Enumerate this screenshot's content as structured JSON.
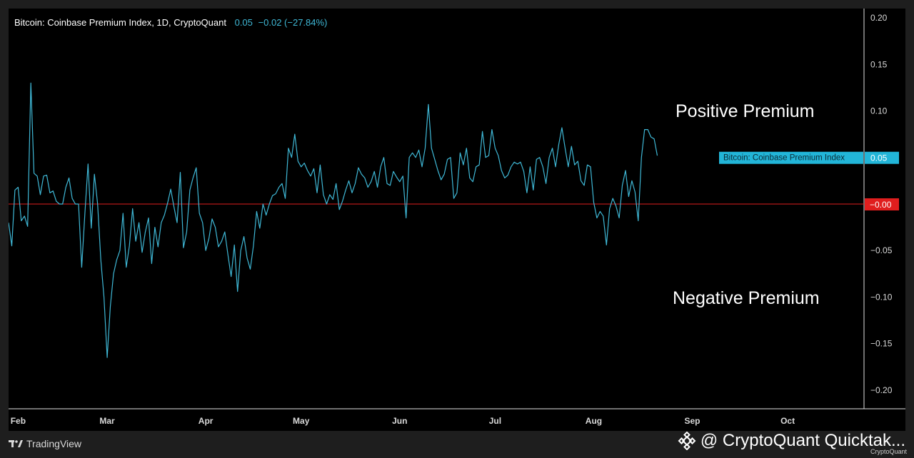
{
  "header": {
    "title": "Bitcoin: Coinbase Premium Index, 1D, CryptoQuant",
    "value": "0.05",
    "change": "−0.02 (−27.84%)"
  },
  "annotations": {
    "positive": "Positive Premium",
    "negative": "Negative Premium"
  },
  "footer": {
    "tradingview": "TradingView",
    "watermark": "@ CryptoQuant Quicktak...",
    "cq_small": "CryptoQuant"
  },
  "colors": {
    "series": "#3fb8d6",
    "zero_line": "#e01e1e",
    "zero_badge": "#e01e1e",
    "series_badge": "#22b5d8",
    "axis_text": "#d9d9d9",
    "background": "#000000"
  },
  "chart_data": {
    "type": "line",
    "title": "Bitcoin: Coinbase Premium Index, 1D, CryptoQuant",
    "xlabel": "",
    "ylabel": "",
    "ylim": [
      -0.22,
      0.21
    ],
    "y_ticks": [
      0.2,
      0.15,
      0.1,
      0.05,
      -0.05,
      -0.1,
      -0.15,
      -0.2
    ],
    "y_tick_labels": [
      "0.20",
      "0.15",
      "0.10",
      "0.05",
      "−0.05",
      "−0.10",
      "−0.15",
      "−0.20"
    ],
    "x_range": [
      "2022-01-29",
      "2022-10-25"
    ],
    "x_ticks": [
      {
        "date": "2022-02-01",
        "label": "Feb"
      },
      {
        "date": "2022-03-01",
        "label": "Mar"
      },
      {
        "date": "2022-04-01",
        "label": "Apr"
      },
      {
        "date": "2022-05-01",
        "label": "May"
      },
      {
        "date": "2022-06-01",
        "label": "Jun"
      },
      {
        "date": "2022-07-01",
        "label": "Jul"
      },
      {
        "date": "2022-08-01",
        "label": "Aug"
      },
      {
        "date": "2022-09-01",
        "label": "Sep"
      },
      {
        "date": "2022-10-01",
        "label": "Oct"
      }
    ],
    "reference_line": {
      "y": 0,
      "label": "0.00"
    },
    "last_value_label": {
      "series": "Bitcoin: Coinbase Premium Index",
      "value": "0.05"
    },
    "grid": false,
    "series": [
      {
        "name": "Bitcoin: Coinbase Premium Index",
        "start_date": "2022-01-29",
        "values": [
          -0.02,
          -0.045,
          0.015,
          0.018,
          -0.018,
          -0.013,
          -0.024,
          0.13,
          0.033,
          0.03,
          0.01,
          0.03,
          0.031,
          0.012,
          0.014,
          0.003,
          0.0,
          0.0,
          0.018,
          0.028,
          0.006,
          0.0,
          0.0,
          -0.068,
          -0.01,
          0.043,
          -0.026,
          0.032,
          0.0,
          -0.06,
          -0.1,
          -0.165,
          -0.11,
          -0.075,
          -0.06,
          -0.05,
          -0.01,
          -0.068,
          -0.045,
          -0.005,
          -0.04,
          -0.02,
          -0.052,
          -0.03,
          -0.015,
          -0.064,
          -0.025,
          -0.046,
          -0.02,
          -0.012,
          0.001,
          0.016,
          -0.003,
          -0.02,
          0.034,
          -0.047,
          -0.03,
          0.015,
          0.028,
          0.039,
          -0.01,
          -0.02,
          -0.05,
          -0.037,
          -0.016,
          -0.025,
          -0.046,
          -0.04,
          -0.03,
          -0.055,
          -0.078,
          -0.044,
          -0.094,
          -0.05,
          -0.035,
          -0.058,
          -0.07,
          -0.045,
          -0.008,
          -0.026,
          0.0,
          -0.012,
          0.0,
          0.009,
          0.011,
          0.018,
          0.022,
          0.006,
          0.06,
          0.05,
          0.075,
          0.046,
          0.04,
          0.044,
          0.036,
          0.03,
          0.038,
          0.012,
          0.042,
          0.01,
          0.0,
          0.01,
          0.005,
          0.022,
          -0.006,
          0.003,
          0.015,
          0.025,
          0.012,
          0.022,
          0.039,
          0.032,
          0.028,
          0.018,
          0.024,
          0.035,
          0.018,
          0.04,
          0.05,
          0.022,
          0.02,
          0.035,
          0.029,
          0.024,
          0.03,
          -0.015,
          0.05,
          0.055,
          0.05,
          0.058,
          0.04,
          0.06,
          0.107,
          0.06,
          0.048,
          0.036,
          0.026,
          0.032,
          0.048,
          0.05,
          0.006,
          0.012,
          0.055,
          0.042,
          0.06,
          0.028,
          0.024,
          0.04,
          0.042,
          0.078,
          0.05,
          0.052,
          0.08,
          0.06,
          0.052,
          0.036,
          0.028,
          0.031,
          0.04,
          0.045,
          0.043,
          0.045,
          0.035,
          0.012,
          0.04,
          0.015,
          0.048,
          0.05,
          0.04,
          0.022,
          0.05,
          0.06,
          0.04,
          0.064,
          0.082,
          0.06,
          0.04,
          0.062,
          0.042,
          0.046,
          0.025,
          0.02,
          0.042,
          0.04,
          0.002,
          -0.015,
          -0.008,
          -0.013,
          -0.044,
          -0.005,
          0.006,
          -0.002,
          -0.015,
          0.02,
          0.036,
          0.008,
          0.025,
          0.013,
          -0.018,
          0.05,
          0.08,
          0.08,
          0.072,
          0.07,
          0.052
        ]
      }
    ]
  }
}
